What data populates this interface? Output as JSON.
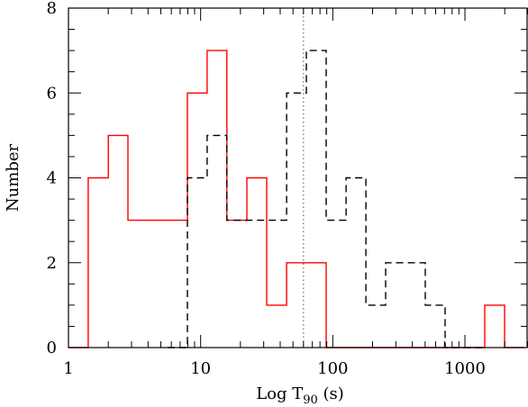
{
  "chart_data": {
    "type": "histogram",
    "title": "",
    "xlabel": "Log T",
    "xlabel_sub": "90",
    "xlabel_unit": " (s)",
    "ylabel": "Number",
    "xscale": "log",
    "xlim": [
      1,
      3000
    ],
    "ylim": [
      0,
      8
    ],
    "grid": false,
    "legend": "none",
    "x_ticks": [
      {
        "value": 1,
        "label": "1"
      },
      {
        "value": 10,
        "label": "10"
      },
      {
        "value": 100,
        "label": "100"
      },
      {
        "value": 1000,
        "label": "1000"
      }
    ],
    "y_ticks": [
      {
        "value": 0,
        "label": "0"
      },
      {
        "value": 2,
        "label": "2"
      },
      {
        "value": 4,
        "label": "4"
      },
      {
        "value": 6,
        "label": "6"
      },
      {
        "value": 8,
        "label": "8"
      }
    ],
    "vline": {
      "x": 60,
      "style": "dotted",
      "color": "#808080"
    },
    "series": [
      {
        "style": "solid",
        "color": "#ff0000",
        "bin_edges": [
          1.0,
          1.41,
          2.0,
          2.82,
          3.98,
          5.62,
          7.94,
          11.2,
          15.8,
          22.4,
          31.6,
          44.7,
          63.1,
          89.1,
          126,
          178,
          251,
          355,
          501,
          708,
          1000,
          1413,
          1995,
          2818
        ],
        "counts": [
          0,
          4,
          5,
          3,
          3,
          3,
          6,
          7,
          3,
          4,
          1,
          2,
          2,
          0,
          0,
          0,
          0,
          0,
          0,
          0,
          0,
          1,
          0
        ]
      },
      {
        "style": "dashed",
        "color": "#000000",
        "bin_edges": [
          5.62,
          7.94,
          11.2,
          15.8,
          22.4,
          31.6,
          44.7,
          63.1,
          89.1,
          126,
          178,
          251,
          355,
          501,
          708,
          1000,
          1413
        ],
        "counts": [
          0,
          4,
          5,
          3,
          3,
          3,
          6,
          7,
          3,
          4,
          1,
          2,
          2,
          1,
          0,
          0
        ]
      }
    ]
  }
}
